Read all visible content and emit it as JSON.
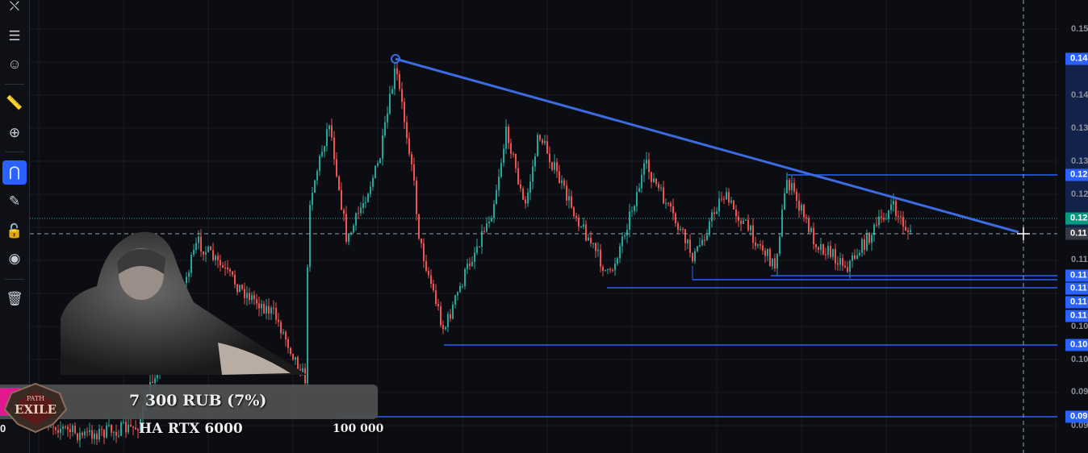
{
  "toolbar": {
    "tools": [
      {
        "icon": "pattern-icon",
        "glyph": "⛌",
        "active": false
      },
      {
        "icon": "fib-lines-icon",
        "glyph": "☰",
        "active": false
      },
      {
        "icon": "emoji-icon",
        "glyph": "☺",
        "active": false
      },
      {
        "icon": "ruler-icon",
        "glyph": "📏",
        "active": false
      },
      {
        "icon": "zoom-in-icon",
        "glyph": "⊕",
        "active": false
      },
      {
        "icon": "magnet-icon",
        "glyph": "⋂",
        "active": true
      },
      {
        "icon": "lock-drawing-icon",
        "glyph": "✎",
        "active": false
      },
      {
        "icon": "unlock-icon",
        "glyph": "🔓",
        "active": false
      },
      {
        "icon": "eye-icon",
        "glyph": "◉",
        "active": false
      },
      {
        "icon": "trash-icon",
        "glyph": "🗑",
        "active": false
      }
    ]
  },
  "price_axis": {
    "ticks": [
      "0.15",
      "0.14",
      "0.13",
      "0.13",
      "0.12",
      "0.11",
      "0.10",
      "0.10",
      "0.09",
      "0.09"
    ],
    "badges": [
      {
        "text": "0.14",
        "color": "#2962ff"
      },
      {
        "text": "0.12",
        "color": "#2962ff"
      },
      {
        "text": "0.12",
        "color": "#089981"
      },
      {
        "text": "0.11",
        "color": "#363a45"
      },
      {
        "text": "0.11",
        "color": "#2962ff"
      },
      {
        "text": "0.11",
        "color": "#2962ff"
      },
      {
        "text": "0.11",
        "color": "#2962ff"
      },
      {
        "text": "0.11",
        "color": "#2962ff"
      },
      {
        "text": "0.10",
        "color": "#2962ff"
      },
      {
        "text": "0.09",
        "color": "#2962ff"
      }
    ]
  },
  "colors": {
    "up": "#26a69a",
    "down": "#ef5350",
    "drawing": "#2962ff",
    "trendline": "#3d6be0"
  },
  "overlay": {
    "donation_amount": "7 300 RUB (7%)",
    "goal_label": "НА RTX 6000",
    "goal_target": "100 000",
    "goal_start": "0",
    "logo_text": "PATH OF EXILE"
  }
}
